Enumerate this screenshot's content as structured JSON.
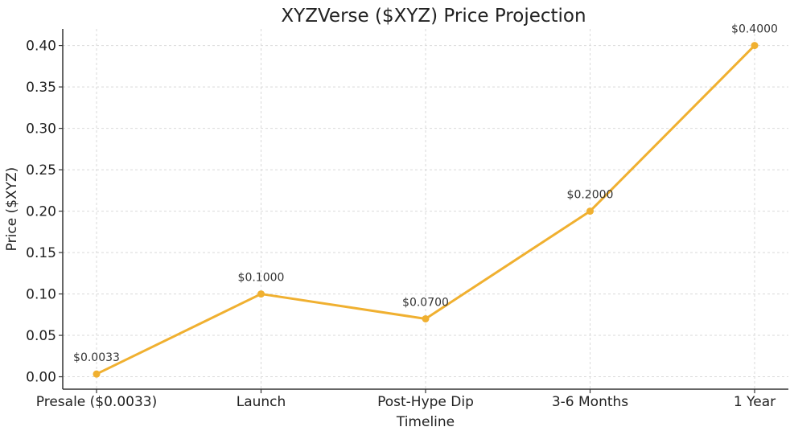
{
  "chart_data": {
    "type": "line",
    "title": "XYZVerse ($XYZ) Price Projection",
    "xlabel": "Timeline",
    "ylabel": "Price ($XYZ)",
    "categories": [
      "Presale ($0.0033)",
      "Launch",
      "Post-Hype Dip",
      "3-6 Months",
      "1 Year"
    ],
    "series": [
      {
        "values": [
          0.0033,
          0.1,
          0.07,
          0.2,
          0.4
        ],
        "data_labels": [
          "$0.0033",
          "$0.1000",
          "$0.0700",
          "$0.2000",
          "$0.4000"
        ],
        "color": "#F0B030"
      }
    ],
    "ylim": [
      -0.015,
      0.42
    ],
    "yticks": [
      0.0,
      0.05,
      0.1,
      0.15,
      0.2,
      0.25,
      0.3,
      0.35,
      0.4
    ],
    "ytick_labels": [
      "0.00",
      "0.05",
      "0.10",
      "0.15",
      "0.20",
      "0.25",
      "0.30",
      "0.35",
      "0.40"
    ],
    "grid": true,
    "legend": "none"
  },
  "colors": {
    "line": "#F0B030",
    "grid": "#d9d9d9",
    "axis": "#333333",
    "text": "#222222"
  }
}
